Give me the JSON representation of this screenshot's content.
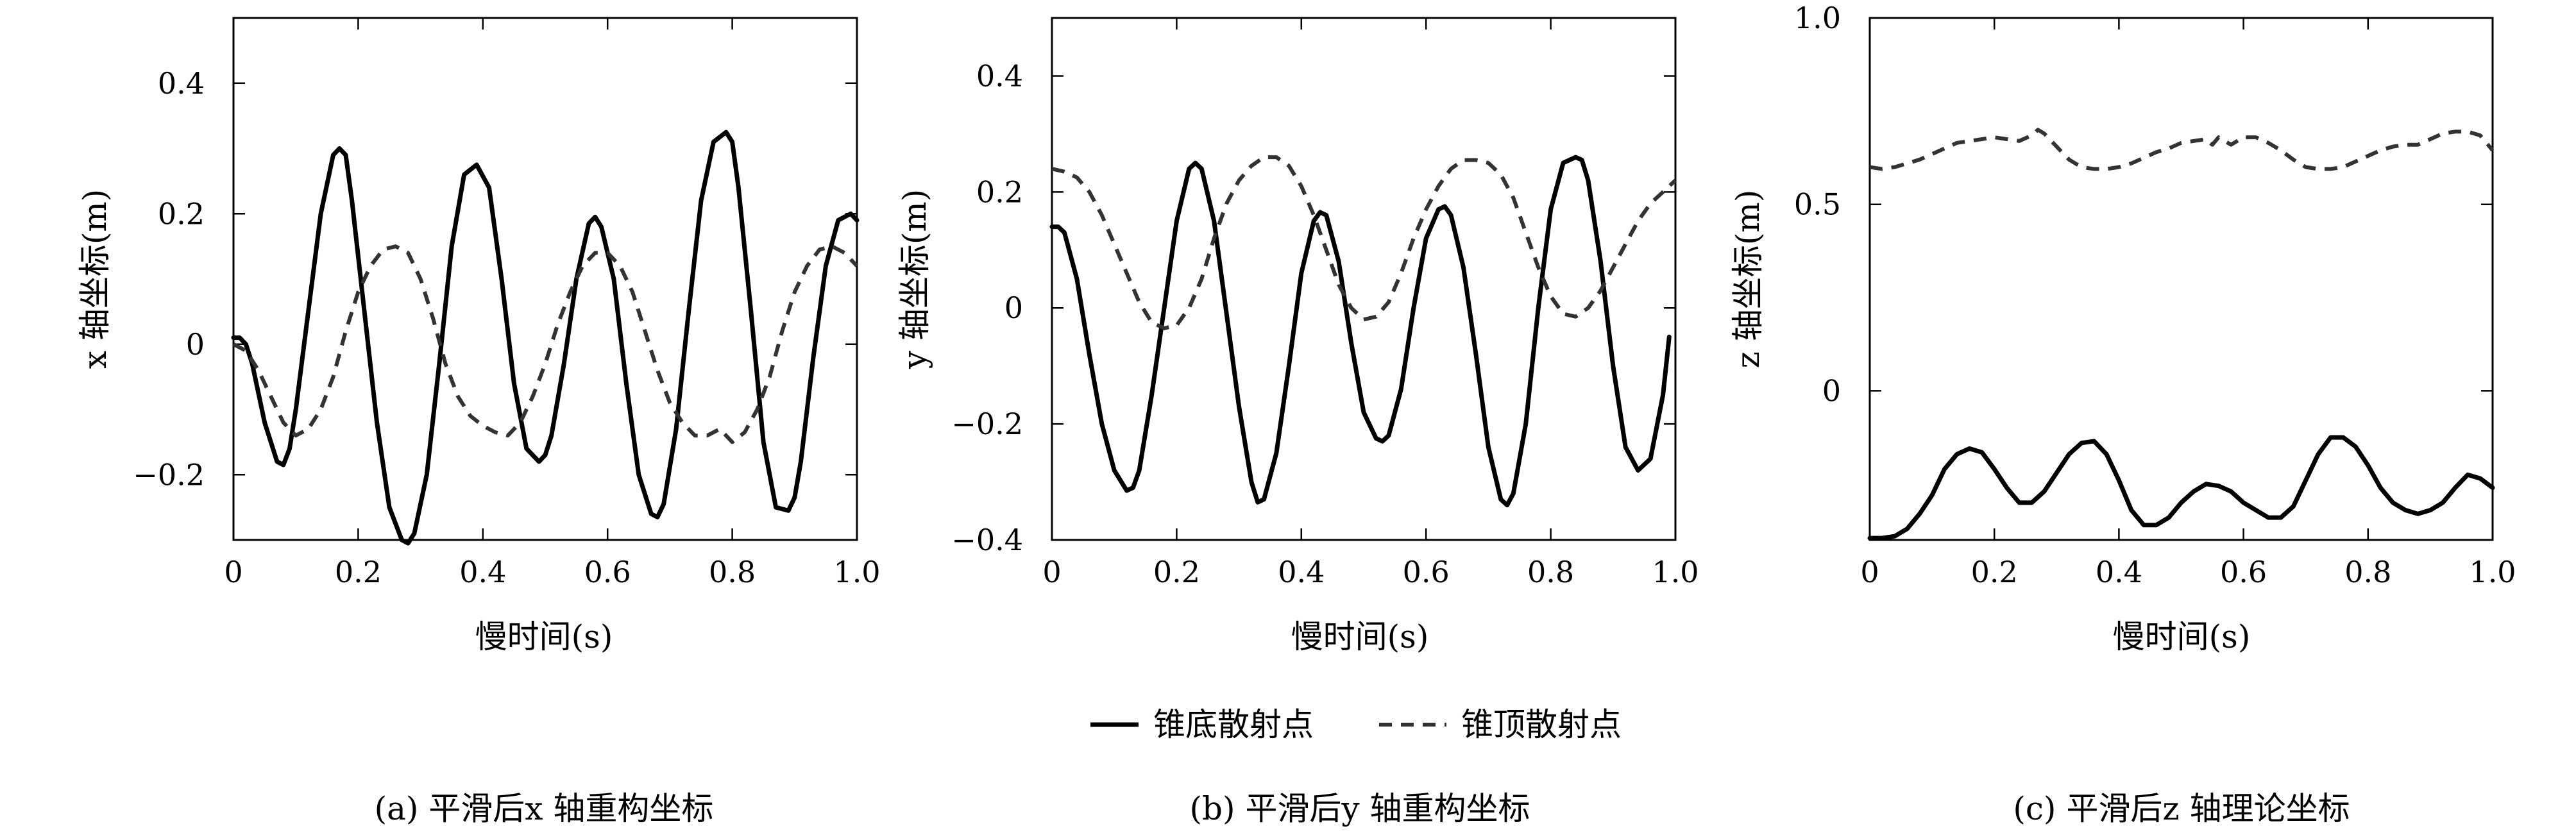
{
  "legend": {
    "solid_label": "锥底散射点",
    "dashed_label": "锥顶散射点"
  },
  "chart_data": [
    {
      "type": "line",
      "caption": "(a) 平滑后x 轴重构坐标",
      "xlabel": "慢时间(s)",
      "ylabel": "x 轴坐标(m)",
      "xlim": [
        0,
        1.0
      ],
      "ylim": [
        -0.3,
        0.5
      ],
      "xticks": [
        0,
        0.2,
        0.4,
        0.6,
        0.8,
        1.0
      ],
      "xtick_labels": [
        "0",
        "0.2",
        "0.4",
        "0.6",
        "0.8",
        "1.0"
      ],
      "yticks": [
        -0.2,
        0,
        0.2,
        0.4
      ],
      "ytick_labels": [
        "−0.2",
        "0",
        "0.2",
        "0.4"
      ],
      "grid": false,
      "series": [
        {
          "name": "锥底散射点",
          "style": "solid",
          "x": [
            0,
            0.01,
            0.02,
            0.03,
            0.05,
            0.07,
            0.08,
            0.09,
            0.1,
            0.12,
            0.14,
            0.16,
            0.17,
            0.18,
            0.19,
            0.21,
            0.23,
            0.25,
            0.27,
            0.28,
            0.29,
            0.31,
            0.33,
            0.35,
            0.37,
            0.39,
            0.41,
            0.43,
            0.45,
            0.47,
            0.49,
            0.5,
            0.51,
            0.53,
            0.55,
            0.57,
            0.58,
            0.59,
            0.61,
            0.63,
            0.65,
            0.67,
            0.68,
            0.69,
            0.71,
            0.73,
            0.75,
            0.77,
            0.79,
            0.8,
            0.81,
            0.83,
            0.85,
            0.87,
            0.89,
            0.9,
            0.91,
            0.93,
            0.95,
            0.97,
            0.99,
            1.0
          ],
          "y": [
            0.01,
            0.01,
            0.0,
            -0.03,
            -0.12,
            -0.18,
            -0.185,
            -0.16,
            -0.1,
            0.05,
            0.2,
            0.29,
            0.3,
            0.29,
            0.22,
            0.05,
            -0.12,
            -0.25,
            -0.3,
            -0.305,
            -0.29,
            -0.2,
            -0.03,
            0.15,
            0.26,
            0.275,
            0.24,
            0.1,
            -0.06,
            -0.16,
            -0.18,
            -0.17,
            -0.14,
            -0.03,
            0.1,
            0.185,
            0.195,
            0.18,
            0.1,
            -0.06,
            -0.2,
            -0.26,
            -0.265,
            -0.245,
            -0.13,
            0.05,
            0.22,
            0.31,
            0.325,
            0.31,
            0.24,
            0.05,
            -0.15,
            -0.25,
            -0.255,
            -0.235,
            -0.18,
            -0.02,
            0.12,
            0.19,
            0.2,
            0.19
          ]
        },
        {
          "name": "锥顶散射点",
          "style": "dashed",
          "x": [
            0,
            0.02,
            0.04,
            0.06,
            0.08,
            0.1,
            0.12,
            0.14,
            0.16,
            0.18,
            0.2,
            0.22,
            0.24,
            0.26,
            0.28,
            0.3,
            0.32,
            0.34,
            0.36,
            0.38,
            0.4,
            0.42,
            0.44,
            0.46,
            0.48,
            0.5,
            0.52,
            0.54,
            0.56,
            0.58,
            0.6,
            0.62,
            0.64,
            0.66,
            0.68,
            0.7,
            0.72,
            0.74,
            0.76,
            0.78,
            0.8,
            0.82,
            0.84,
            0.86,
            0.88,
            0.9,
            0.92,
            0.94,
            0.96,
            0.98,
            1.0
          ],
          "y": [
            0.0,
            -0.01,
            -0.04,
            -0.08,
            -0.12,
            -0.14,
            -0.13,
            -0.1,
            -0.05,
            0.02,
            0.08,
            0.12,
            0.145,
            0.15,
            0.14,
            0.1,
            0.04,
            -0.03,
            -0.08,
            -0.11,
            -0.125,
            -0.135,
            -0.14,
            -0.12,
            -0.08,
            -0.03,
            0.03,
            0.08,
            0.12,
            0.14,
            0.14,
            0.12,
            0.08,
            0.02,
            -0.04,
            -0.09,
            -0.12,
            -0.14,
            -0.14,
            -0.13,
            -0.15,
            -0.135,
            -0.1,
            -0.05,
            0.02,
            0.08,
            0.12,
            0.145,
            0.15,
            0.14,
            0.12
          ]
        }
      ]
    },
    {
      "type": "line",
      "caption": "(b) 平滑后y 轴重构坐标",
      "xlabel": "慢时间(s)",
      "ylabel": "y 轴坐标(m)",
      "xlim": [
        0,
        1.0
      ],
      "ylim": [
        -0.4,
        0.5
      ],
      "xticks": [
        0,
        0.2,
        0.4,
        0.6,
        0.8,
        1.0
      ],
      "xtick_labels": [
        "0",
        "0.2",
        "0.4",
        "0.6",
        "0.8",
        "1.0"
      ],
      "yticks": [
        -0.4,
        -0.2,
        0,
        0.2,
        0.4
      ],
      "ytick_labels": [
        "−0.4",
        "−0.2",
        "0",
        "0.2",
        "0.4"
      ],
      "grid": false,
      "series": [
        {
          "name": "锥底散射点",
          "style": "solid",
          "x": [
            0,
            0.01,
            0.02,
            0.04,
            0.06,
            0.08,
            0.1,
            0.12,
            0.13,
            0.14,
            0.16,
            0.18,
            0.2,
            0.22,
            0.23,
            0.24,
            0.26,
            0.28,
            0.3,
            0.32,
            0.33,
            0.34,
            0.36,
            0.38,
            0.4,
            0.42,
            0.43,
            0.44,
            0.46,
            0.48,
            0.5,
            0.52,
            0.53,
            0.54,
            0.56,
            0.58,
            0.6,
            0.62,
            0.63,
            0.64,
            0.66,
            0.68,
            0.7,
            0.72,
            0.73,
            0.74,
            0.76,
            0.78,
            0.8,
            0.82,
            0.84,
            0.85,
            0.86,
            0.88,
            0.9,
            0.92,
            0.94,
            0.96,
            0.98,
            0.99
          ],
          "y": [
            0.14,
            0.14,
            0.13,
            0.05,
            -0.08,
            -0.2,
            -0.28,
            -0.315,
            -0.31,
            -0.28,
            -0.15,
            0.0,
            0.15,
            0.24,
            0.25,
            0.24,
            0.15,
            -0.01,
            -0.17,
            -0.3,
            -0.335,
            -0.33,
            -0.25,
            -0.1,
            0.06,
            0.15,
            0.165,
            0.16,
            0.08,
            -0.06,
            -0.18,
            -0.225,
            -0.23,
            -0.22,
            -0.14,
            0.0,
            0.12,
            0.17,
            0.175,
            0.16,
            0.07,
            -0.08,
            -0.24,
            -0.33,
            -0.34,
            -0.32,
            -0.2,
            0.0,
            0.17,
            0.25,
            0.26,
            0.255,
            0.22,
            0.08,
            -0.1,
            -0.24,
            -0.28,
            -0.26,
            -0.15,
            -0.05
          ]
        },
        {
          "name": "锥顶散射点",
          "style": "dashed",
          "x": [
            0,
            0.02,
            0.04,
            0.06,
            0.08,
            0.1,
            0.12,
            0.14,
            0.16,
            0.18,
            0.2,
            0.22,
            0.24,
            0.26,
            0.28,
            0.3,
            0.32,
            0.34,
            0.36,
            0.38,
            0.4,
            0.42,
            0.44,
            0.46,
            0.48,
            0.5,
            0.52,
            0.54,
            0.56,
            0.58,
            0.6,
            0.62,
            0.64,
            0.66,
            0.68,
            0.7,
            0.72,
            0.74,
            0.76,
            0.78,
            0.8,
            0.82,
            0.84,
            0.86,
            0.88,
            0.9,
            0.92,
            0.94,
            0.96,
            0.98,
            1.0
          ],
          "y": [
            0.24,
            0.235,
            0.225,
            0.2,
            0.16,
            0.11,
            0.06,
            0.01,
            -0.025,
            -0.035,
            -0.03,
            0.0,
            0.05,
            0.12,
            0.18,
            0.22,
            0.245,
            0.26,
            0.26,
            0.245,
            0.21,
            0.16,
            0.1,
            0.04,
            0.0,
            -0.02,
            -0.015,
            0.01,
            0.06,
            0.12,
            0.17,
            0.21,
            0.24,
            0.255,
            0.255,
            0.25,
            0.23,
            0.19,
            0.13,
            0.07,
            0.02,
            -0.01,
            -0.015,
            0.0,
            0.03,
            0.07,
            0.11,
            0.15,
            0.18,
            0.2,
            0.22
          ]
        }
      ]
    },
    {
      "type": "line",
      "caption": "(c) 平滑后z 轴理论坐标",
      "xlabel": "慢时间(s)",
      "ylabel": "z 轴坐标(m)",
      "xlim": [
        0,
        1.0
      ],
      "ylim": [
        -0.4,
        1.0
      ],
      "xticks": [
        0,
        0.2,
        0.4,
        0.6,
        0.8,
        1.0
      ],
      "xtick_labels": [
        "0",
        "0.2",
        "0.4",
        "0.6",
        "0.8",
        "1.0"
      ],
      "yticks": [
        0,
        0.5,
        1.0
      ],
      "ytick_labels": [
        "0",
        "0.5",
        "1.0"
      ],
      "grid": false,
      "series": [
        {
          "name": "锥底散射点",
          "style": "solid",
          "x": [
            0,
            0.02,
            0.04,
            0.06,
            0.08,
            0.1,
            0.12,
            0.14,
            0.16,
            0.18,
            0.2,
            0.22,
            0.24,
            0.26,
            0.28,
            0.3,
            0.32,
            0.34,
            0.36,
            0.38,
            0.4,
            0.42,
            0.44,
            0.46,
            0.48,
            0.5,
            0.52,
            0.54,
            0.56,
            0.58,
            0.6,
            0.62,
            0.64,
            0.66,
            0.68,
            0.7,
            0.72,
            0.74,
            0.76,
            0.78,
            0.8,
            0.82,
            0.84,
            0.86,
            0.88,
            0.9,
            0.92,
            0.94,
            0.96,
            0.98,
            1.0
          ],
          "y": [
            -0.395,
            -0.395,
            -0.39,
            -0.37,
            -0.33,
            -0.28,
            -0.21,
            -0.17,
            -0.155,
            -0.165,
            -0.21,
            -0.26,
            -0.3,
            -0.3,
            -0.27,
            -0.22,
            -0.17,
            -0.14,
            -0.135,
            -0.17,
            -0.24,
            -0.32,
            -0.36,
            -0.36,
            -0.34,
            -0.3,
            -0.27,
            -0.25,
            -0.255,
            -0.27,
            -0.3,
            -0.32,
            -0.34,
            -0.34,
            -0.31,
            -0.24,
            -0.17,
            -0.125,
            -0.125,
            -0.15,
            -0.2,
            -0.26,
            -0.3,
            -0.32,
            -0.33,
            -0.32,
            -0.3,
            -0.26,
            -0.225,
            -0.235,
            -0.26
          ]
        },
        {
          "name": "锥顶散射点",
          "style": "dashed",
          "x": [
            0,
            0.02,
            0.04,
            0.06,
            0.08,
            0.1,
            0.12,
            0.14,
            0.16,
            0.18,
            0.2,
            0.22,
            0.24,
            0.26,
            0.27,
            0.28,
            0.3,
            0.32,
            0.34,
            0.36,
            0.38,
            0.4,
            0.42,
            0.44,
            0.46,
            0.48,
            0.5,
            0.52,
            0.54,
            0.55,
            0.56,
            0.57,
            0.58,
            0.6,
            0.62,
            0.64,
            0.66,
            0.68,
            0.7,
            0.72,
            0.74,
            0.76,
            0.78,
            0.8,
            0.82,
            0.84,
            0.86,
            0.88,
            0.9,
            0.92,
            0.94,
            0.96,
            0.98,
            1.0
          ],
          "y": [
            0.6,
            0.595,
            0.6,
            0.61,
            0.62,
            0.635,
            0.65,
            0.665,
            0.67,
            0.675,
            0.68,
            0.675,
            0.67,
            0.685,
            0.7,
            0.69,
            0.655,
            0.62,
            0.6,
            0.595,
            0.595,
            0.6,
            0.61,
            0.625,
            0.64,
            0.65,
            0.665,
            0.67,
            0.675,
            0.66,
            0.68,
            0.67,
            0.66,
            0.68,
            0.68,
            0.665,
            0.645,
            0.62,
            0.6,
            0.595,
            0.595,
            0.6,
            0.615,
            0.63,
            0.645,
            0.655,
            0.66,
            0.66,
            0.675,
            0.69,
            0.695,
            0.695,
            0.685,
            0.645
          ]
        }
      ]
    }
  ]
}
